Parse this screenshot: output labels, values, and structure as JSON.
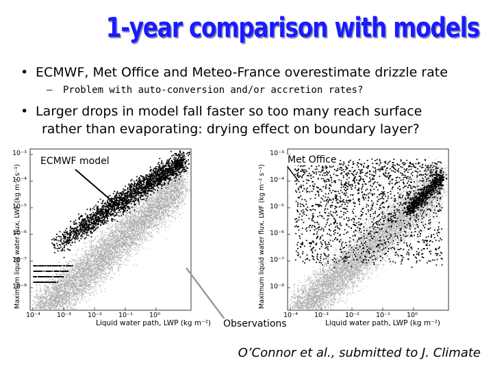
{
  "title": "1-year comparison with models",
  "bullets": [
    {
      "marker": "•",
      "text": "ECMWF, Met Office and Meteo-France overestimate drizzle rate"
    },
    {
      "marker": "–",
      "text": "Problem with auto-conversion and/or accretion rates?"
    },
    {
      "marker": "•",
      "line1": "Larger drops in model fall faster so too many reach surface",
      "line2": "rather than evaporating: drying effect on boundary layer?"
    }
  ],
  "panels": [
    {
      "label": "ECMWF model",
      "ylabel": "Maximum liquid water flux, LWF (kg m⁻² s⁻¹)",
      "xlabel": "Liquid water path, LWP (kg m⁻²)"
    },
    {
      "label": "Met Office",
      "ylabel": "Maximum liquid water flux, LWF (kg m⁻² s⁻¹)",
      "xlabel": "Liquid water path, LWP (kg m⁻²)"
    }
  ],
  "yticks": [
    "10⁻³",
    "10⁻⁴",
    "10⁻⁵",
    "10⁻⁶",
    "10⁻⁷",
    "10⁻⁸"
  ],
  "xticks": [
    "10⁻⁴",
    "10⁻³",
    "10⁻²",
    "10⁻¹",
    "10⁰"
  ],
  "observations_label": "Observations",
  "citation": "O’Connor et al., submitted to J. Climate",
  "colors": {
    "title": "#1a1aff",
    "model_points": "#000000",
    "obs_points": "#a8a8a8"
  }
}
